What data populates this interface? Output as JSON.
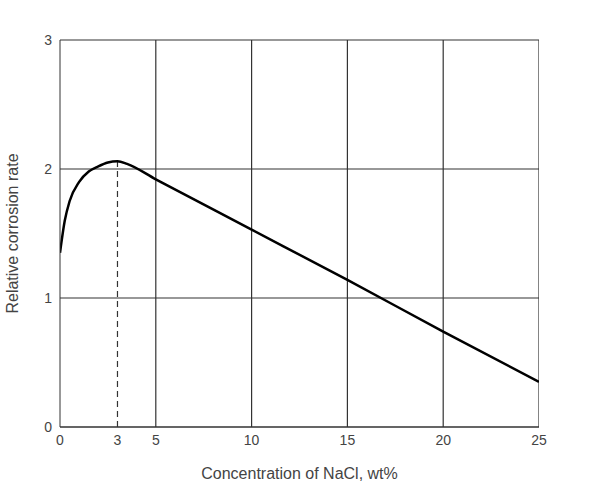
{
  "chart_data": {
    "type": "line",
    "x_label": "Concentration of NaCl, wt%",
    "y_label": "Relative corrosion rate",
    "x": [
      0,
      0.25,
      0.5,
      1,
      1.5,
      2,
      2.5,
      3,
      3.5,
      5,
      10,
      15,
      20,
      25
    ],
    "values": [
      1.35,
      1.6,
      1.75,
      1.9,
      1.98,
      2.02,
      2.05,
      2.06,
      2.04,
      1.92,
      1.53,
      1.14,
      0.74,
      0.35
    ],
    "color": "#000000",
    "line_style": "solid",
    "xlim": [
      0,
      25
    ],
    "ylim": [
      0,
      3
    ],
    "xticks": [
      0,
      3,
      5,
      10,
      15,
      20,
      25
    ],
    "yticks": [
      0,
      1,
      2,
      3
    ],
    "grid": true,
    "peak_x": 3
  }
}
